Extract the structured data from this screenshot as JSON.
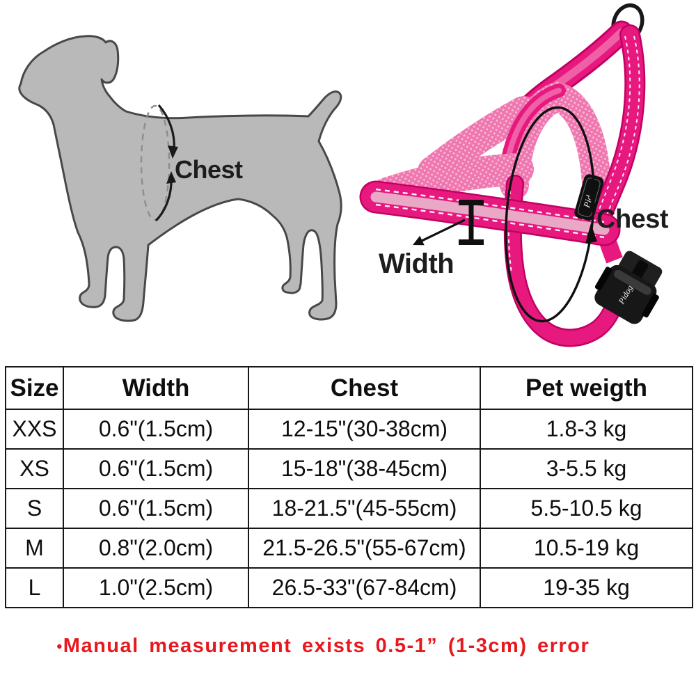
{
  "dog_diagram": {
    "label": "Chest",
    "body_color": "#b9b9b9",
    "outline_color": "#484848",
    "dashed_ellipse_color": "#8f8f8f",
    "arrow_color": "#1a1a1a"
  },
  "harness_diagram": {
    "chest_label": "Chest",
    "width_label": "Width",
    "brand": "Pidog",
    "strap_color": "#e7197f",
    "strap_edge_color": "#c20063",
    "strap_highlight_color": "#f060a6",
    "reflective_stripe_color": "#e9a8c6",
    "mesh_color": "#ef76af",
    "mesh_dot_color": "#f8bcd8",
    "hardware_color": "#171717",
    "annotation_color": "#101010"
  },
  "size_table": {
    "headers": [
      "Size",
      "Width",
      "Chest",
      "Pet weigth"
    ],
    "rows": [
      [
        "XXS",
        "0.6\"(1.5cm)",
        "12-15\"(30-38cm)",
        "1.8-3 kg"
      ],
      [
        "XS",
        "0.6\"(1.5cm)",
        "15-18\"(38-45cm)",
        "3-5.5 kg"
      ],
      [
        "S",
        "0.6\"(1.5cm)",
        "18-21.5\"(45-55cm)",
        "5.5-10.5 kg"
      ],
      [
        "M",
        "0.8\"(2.0cm)",
        "21.5-26.5\"(55-67cm)",
        "10.5-19 kg"
      ],
      [
        "L",
        "1.0\"(2.5cm)",
        "26.5-33\"(67-84cm)",
        "19-35 kg"
      ]
    ]
  },
  "note": {
    "bullet": "●",
    "text": "Manual measurement exists 0.5-1” (1-3cm) error",
    "color": "#e8191e"
  }
}
